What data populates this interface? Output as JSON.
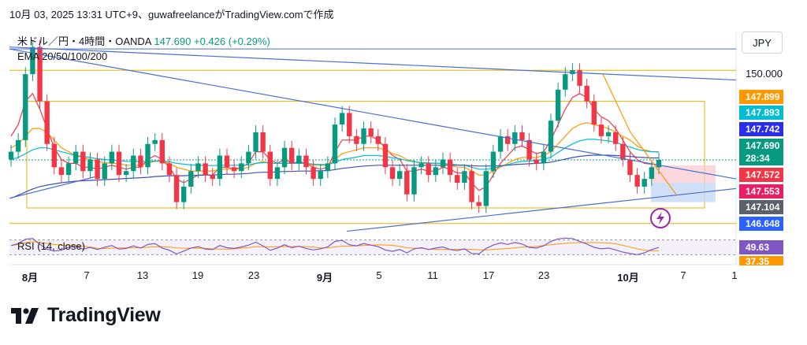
{
  "header": {
    "text": "10月 03, 2025 13:31 UTC+9、guwafreelanceがTradingView.comで作成"
  },
  "legend": {
    "symbol": "米ドル／円・4時間・OANDA",
    "price": "147.690",
    "change": "+0.426 (+0.29%)",
    "indicators": "EMA 20/50/100/200",
    "rsi": "RSI (14, close)"
  },
  "currency_button": "JPY",
  "brand": {
    "logo_text": "TradingView",
    "icon": "tradingview-logo-icon"
  },
  "flash_icon": "lightning-icon",
  "colors": {
    "up": "#089981",
    "down": "#f23645",
    "ema20": "#f23645",
    "ema50": "#ff9800",
    "ema100": "#00bcd4",
    "ema200": "#3f51b5",
    "rsi": "#7e57c2",
    "trend": "#4a6fd1",
    "level": "#e5b400"
  },
  "price_tags": [
    {
      "label": "150.000",
      "bg": "",
      "color": "#131722"
    },
    {
      "label": "147.899",
      "bg": "#ff9800",
      "color": "#ffffff"
    },
    {
      "label": "147.893",
      "bg": "#00bcd4",
      "color": "#ffffff"
    },
    {
      "label": "147.742",
      "bg": "#2a2eec",
      "color": "#ffffff"
    },
    {
      "label": "147.690",
      "bg": "#089981",
      "color": "#ffffff"
    },
    {
      "label": "28:34",
      "bg": "#089981",
      "color": "#ffffff"
    },
    {
      "label": "147.572",
      "bg": "#f23645",
      "color": "#ffffff"
    },
    {
      "label": "147.553",
      "bg": "#e91e63",
      "color": "#ffffff"
    },
    {
      "label": "147.104",
      "bg": "#5d606b",
      "color": "#ffffff"
    },
    {
      "label": "146.648",
      "bg": "#2962ff",
      "color": "#ffffff"
    },
    {
      "label": "49.63",
      "bg": "#7e57c2",
      "color": "#ffffff"
    },
    {
      "label": "37.35",
      "bg": "#ff9800",
      "color": "#ffffff"
    }
  ],
  "chart_data": {
    "type": "candlestick",
    "title": "米ドル／円・4時間・OANDA",
    "x_ticks": [
      "8月",
      "7",
      "13",
      "19",
      "23",
      "9月",
      "5",
      "11",
      "17",
      "23",
      "10月",
      "7",
      "1"
    ],
    "y_ticks_labeled": [
      150.0
    ],
    "ylim": [
      145.8,
      151.0
    ],
    "ohlc_close_path": [
      147.9,
      148.2,
      149.9,
      150.6,
      149.2,
      148.1,
      147.5,
      147.3,
      147.6,
      147.9,
      147.4,
      147.7,
      147.2,
      147.6,
      147.9,
      147.3,
      147.4,
      147.8,
      147.5,
      148.1,
      148.2,
      147.6,
      147.3,
      146.6,
      147.0,
      147.4,
      147.6,
      147.3,
      147.2,
      147.8,
      147.5,
      147.4,
      147.6,
      147.9,
      148.4,
      147.9,
      147.2,
      147.5,
      148.0,
      147.6,
      147.8,
      147.5,
      147.2,
      147.4,
      147.6,
      148.6,
      148.9,
      148.3,
      148.1,
      148.5,
      148.3,
      148.1,
      147.5,
      147.2,
      147.4,
      146.8,
      147.5,
      147.6,
      147.3,
      147.5,
      147.7,
      147.3,
      147.1,
      147.4,
      146.6,
      146.5,
      147.4,
      147.9,
      148.3,
      148.1,
      148.4,
      148.2,
      147.7,
      147.6,
      147.9,
      148.7,
      149.5,
      149.9,
      150.0,
      149.6,
      149.2,
      148.6,
      148.3,
      148.4,
      148.1,
      147.7,
      147.3,
      147.0,
      147.2,
      147.5,
      147.69
    ],
    "series": [
      {
        "name": "EMA 20",
        "values": [
          148.3,
          148.6,
          149.2,
          149.4,
          149.0,
          148.5,
          148.0,
          147.7,
          147.6,
          147.6,
          147.5,
          147.5,
          147.45,
          147.5,
          147.55,
          147.5,
          147.45,
          147.5,
          147.5,
          147.7,
          147.8,
          147.7,
          147.5,
          147.2,
          147.1,
          147.2,
          147.3,
          147.3,
          147.3,
          147.5,
          147.5,
          147.45,
          147.5,
          147.6,
          147.9,
          147.9,
          147.7,
          147.6,
          147.7,
          147.6,
          147.65,
          147.6,
          147.5,
          147.45,
          147.5,
          147.9,
          148.2,
          148.2,
          148.2,
          148.3,
          148.3,
          148.2,
          148.0,
          147.8,
          147.7,
          147.4,
          147.4,
          147.45,
          147.4,
          147.4,
          147.5,
          147.45,
          147.35,
          147.35,
          147.1,
          146.9,
          147.0,
          147.3,
          147.6,
          147.8,
          148.0,
          148.05,
          147.95,
          147.85,
          147.9,
          148.2,
          148.6,
          149.0,
          149.3,
          149.4,
          149.3,
          149.0,
          148.8,
          148.7,
          148.5,
          148.2,
          147.9,
          147.7,
          147.6,
          147.58,
          147.57
        ]
      },
      {
        "name": "EMA 50",
        "values": [
          148.0,
          148.1,
          148.3,
          148.5,
          148.5,
          148.4,
          148.2,
          148.0,
          147.9,
          147.8,
          147.75,
          147.7,
          147.65,
          147.62,
          147.6,
          147.6,
          147.55,
          147.55,
          147.55,
          147.6,
          147.65,
          147.65,
          147.6,
          147.5,
          147.45,
          147.4,
          147.4,
          147.4,
          147.4,
          147.45,
          147.45,
          147.45,
          147.45,
          147.5,
          147.6,
          147.65,
          147.6,
          147.6,
          147.6,
          147.6,
          147.6,
          147.6,
          147.55,
          147.55,
          147.55,
          147.7,
          147.85,
          147.9,
          147.95,
          148.0,
          148.0,
          148.0,
          147.95,
          147.85,
          147.8,
          147.7,
          147.65,
          147.6,
          147.6,
          147.6,
          147.6,
          147.55,
          147.5,
          147.5,
          147.4,
          147.3,
          147.3,
          147.4,
          147.5,
          147.6,
          147.7,
          147.75,
          147.75,
          147.75,
          147.8,
          147.9,
          148.1,
          148.3,
          148.5,
          148.6,
          148.65,
          148.6,
          148.55,
          148.5,
          148.4,
          148.3,
          148.2,
          148.05,
          147.95,
          147.9,
          147.9
        ]
      },
      {
        "name": "EMA 100",
        "values": [
          147.7,
          147.75,
          147.85,
          147.95,
          148.0,
          148.0,
          147.95,
          147.9,
          147.85,
          147.8,
          147.78,
          147.75,
          147.72,
          147.7,
          147.68,
          147.67,
          147.65,
          147.65,
          147.64,
          147.65,
          147.66,
          147.66,
          147.64,
          147.6,
          147.58,
          147.56,
          147.55,
          147.55,
          147.54,
          147.55,
          147.55,
          147.55,
          147.55,
          147.56,
          147.6,
          147.62,
          147.61,
          147.6,
          147.6,
          147.6,
          147.6,
          147.6,
          147.58,
          147.57,
          147.57,
          147.62,
          147.7,
          147.73,
          147.76,
          147.8,
          147.8,
          147.8,
          147.78,
          147.74,
          147.72,
          147.67,
          147.64,
          147.62,
          147.61,
          147.6,
          147.6,
          147.58,
          147.56,
          147.55,
          147.5,
          147.45,
          147.45,
          147.48,
          147.52,
          147.57,
          147.62,
          147.65,
          147.66,
          147.67,
          147.7,
          147.76,
          147.88,
          148.0,
          148.1,
          148.18,
          148.22,
          148.22,
          148.2,
          148.18,
          148.14,
          148.08,
          148.02,
          147.96,
          147.92,
          147.9,
          147.89
        ]
      },
      {
        "name": "EMA 200",
        "values": [
          146.7,
          146.78,
          146.86,
          146.94,
          147.0,
          147.04,
          147.07,
          147.1,
          147.12,
          147.14,
          147.15,
          147.16,
          147.17,
          147.18,
          147.19,
          147.2,
          147.21,
          147.22,
          147.23,
          147.24,
          147.26,
          147.27,
          147.28,
          147.28,
          147.28,
          147.29,
          147.29,
          147.3,
          147.3,
          147.31,
          147.32,
          147.32,
          147.33,
          147.34,
          147.36,
          147.37,
          147.37,
          147.38,
          147.39,
          147.39,
          147.4,
          147.4,
          147.4,
          147.41,
          147.41,
          147.44,
          147.47,
          147.49,
          147.51,
          147.53,
          147.54,
          147.55,
          147.55,
          147.55,
          147.55,
          147.55,
          147.55,
          147.55,
          147.55,
          147.55,
          147.55,
          147.55,
          147.55,
          147.55,
          147.54,
          147.53,
          147.53,
          147.53,
          147.54,
          147.55,
          147.57,
          147.58,
          147.59,
          147.6,
          147.61,
          147.63,
          147.67,
          147.71,
          147.75,
          147.78,
          147.8,
          147.81,
          147.81,
          147.81,
          147.8,
          147.79,
          147.78,
          147.76,
          147.75,
          147.74,
          147.74
        ]
      },
      {
        "name": "RSI (14, close)",
        "values": [
          55,
          60,
          72,
          74,
          58,
          45,
          40,
          42,
          50,
          53,
          45,
          50,
          44,
          50,
          55,
          45,
          47,
          54,
          48,
          58,
          60,
          48,
          42,
          32,
          40,
          48,
          52,
          45,
          44,
          55,
          49,
          47,
          51,
          56,
          64,
          54,
          42,
          48,
          57,
          49,
          53,
          47,
          43,
          46,
          51,
          66,
          69,
          57,
          54,
          60,
          56,
          52,
          43,
          39,
          44,
          35,
          46,
          49,
          44,
          48,
          51,
          44,
          41,
          46,
          33,
          32,
          47,
          56,
          62,
          58,
          63,
          59,
          50,
          48,
          54,
          66,
          73,
          75,
          74,
          66,
          59,
          50,
          46,
          48,
          43,
          37,
          33,
          30,
          35,
          44,
          49.63
        ]
      }
    ],
    "rsi_ma_value": 37.35,
    "rsi_ylim": [
      20,
      80
    ],
    "horizontal_levels": [
      150.0,
      147.104
    ]
  }
}
